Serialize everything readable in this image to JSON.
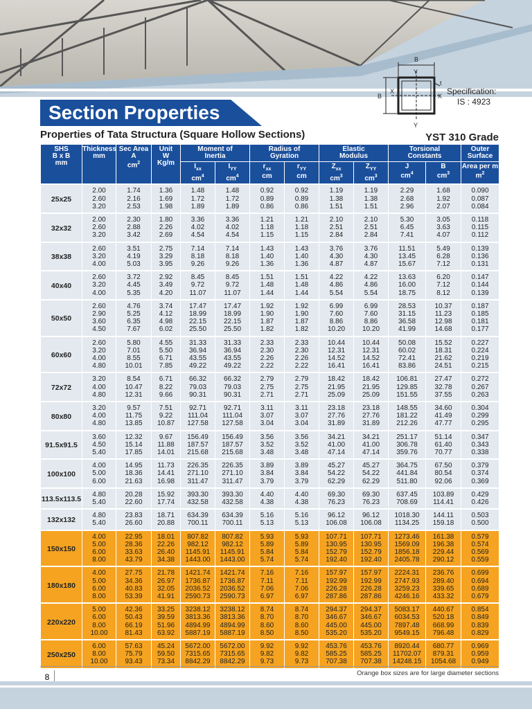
{
  "header": {
    "title": "Section Properties",
    "subtitle": "Properties of Tata Structura (Square Hollow Sections)",
    "grade": "YST 310 Grade"
  },
  "diagram": {
    "labels": {
      "top_b": "B",
      "top_y": "Y",
      "t": "t",
      "left_b": "B",
      "left_x": "X",
      "right_x": "X",
      "bottom_y": "Y"
    },
    "spec": [
      "Specification:",
      "IS : 4923"
    ]
  },
  "table": {
    "columns": [
      {
        "lines": [
          "SHS",
          "B x B",
          "mm"
        ]
      },
      {
        "lines": [
          "Thickness",
          "mm"
        ]
      },
      {
        "lines": [
          "Sec Area",
          "A"
        ],
        "unit": "cm",
        "sup": "2"
      },
      {
        "lines": [
          "Unit",
          "W",
          "Kg/m"
        ]
      }
    ],
    "column_groups": [
      {
        "lines": [
          "Moment of",
          "Inertia"
        ],
        "subs": [
          {
            "sym": "I",
            "sub": "xx",
            "unit": "cm",
            "sup": "4"
          },
          {
            "sym": "I",
            "sub": "YY",
            "unit": "cm",
            "sup": "4"
          }
        ]
      },
      {
        "lines": [
          "Radius of",
          "Gyration"
        ],
        "subs": [
          {
            "sym": "r",
            "sub": "xx",
            "unit": "cm"
          },
          {
            "sym": "r",
            "sub": "YY",
            "unit": "cm"
          }
        ]
      },
      {
        "lines": [
          "Elastic",
          "Modulus"
        ],
        "subs": [
          {
            "sym": "Z",
            "sub": "xx",
            "unit": "cm",
            "sup": "3"
          },
          {
            "sym": "Z",
            "sub": "YY",
            "unit": "cm",
            "sup": "3"
          }
        ]
      },
      {
        "lines": [
          "Torsional",
          "Constants"
        ],
        "subs": [
          {
            "sym": "J",
            "unit": "cm",
            "sup": "4"
          },
          {
            "sym": "B",
            "unit": "cm",
            "sup": "3"
          }
        ]
      },
      {
        "lines": [
          "Outer",
          "Surface"
        ],
        "subs": [
          {
            "sym": "Area per m",
            "unit": "m",
            "sup": "2"
          }
        ]
      }
    ],
    "groups": [
      {
        "size": "25x25",
        "rows": [
          [
            "2.00",
            "1.74",
            "1.36",
            "1.48",
            "1.48",
            "0.92",
            "0.92",
            "1.19",
            "1.19",
            "2.29",
            "1.68",
            "0.090"
          ],
          [
            "2.60",
            "2.16",
            "1.69",
            "1.72",
            "1.72",
            "0.89",
            "0.89",
            "1.38",
            "1.38",
            "2.68",
            "1.92",
            "0.087"
          ],
          [
            "3.20",
            "2.53",
            "1.98",
            "1.89",
            "1.89",
            "0.86",
            "0.86",
            "1.51",
            "1.51",
            "2.96",
            "2.07",
            "0.084"
          ]
        ]
      },
      {
        "size": "32x32",
        "rows": [
          [
            "2.00",
            "2.30",
            "1.80",
            "3.36",
            "3.36",
            "1.21",
            "1.21",
            "2.10",
            "2.10",
            "5.30",
            "3.05",
            "0.118"
          ],
          [
            "2.60",
            "2.88",
            "2.26",
            "4.02",
            "4.02",
            "1.18",
            "1.18",
            "2.51",
            "2.51",
            "6.45",
            "3.63",
            "0.115"
          ],
          [
            "3.20",
            "3.42",
            "2.69",
            "4.54",
            "4.54",
            "1.15",
            "1.15",
            "2.84",
            "2.84",
            "7.41",
            "4.07",
            "0.112"
          ]
        ]
      },
      {
        "size": "38x38",
        "rows": [
          [
            "2.60",
            "3.51",
            "2.75",
            "7.14",
            "7.14",
            "1.43",
            "1.43",
            "3.76",
            "3.76",
            "11.51",
            "5.49",
            "0.139"
          ],
          [
            "3.20",
            "4.19",
            "3.29",
            "8.18",
            "8.18",
            "1.40",
            "1.40",
            "4.30",
            "4.30",
            "13.45",
            "6.28",
            "0.136"
          ],
          [
            "4.00",
            "5.03",
            "3.95",
            "9.26",
            "9.26",
            "1.36",
            "1.36",
            "4.87",
            "4.87",
            "15.67",
            "7.12",
            "0.131"
          ]
        ]
      },
      {
        "size": "40x40",
        "rows": [
          [
            "2.60",
            "3.72",
            "2.92",
            "8.45",
            "8.45",
            "1.51",
            "1.51",
            "4.22",
            "4.22",
            "13.63",
            "6.20",
            "0.147"
          ],
          [
            "3.20",
            "4.45",
            "3.49",
            "9.72",
            "9.72",
            "1.48",
            "1.48",
            "4.86",
            "4.86",
            "16.00",
            "7.12",
            "0.144"
          ],
          [
            "4.00",
            "5.35",
            "4.20",
            "11.07",
            "11.07",
            "1.44",
            "1.44",
            "5.54",
            "5.54",
            "18.75",
            "8.12",
            "0.139"
          ]
        ]
      },
      {
        "size": "50x50",
        "rows": [
          [
            "2.60",
            "4.76",
            "3.74",
            "17.47",
            "17.47",
            "1.92",
            "1.92",
            "6.99",
            "6.99",
            "28.53",
            "10.37",
            "0.187"
          ],
          [
            "2.90",
            "5.25",
            "4.12",
            "18.99",
            "18.99",
            "1.90",
            "1.90",
            "7.60",
            "7.60",
            "31.15",
            "11.23",
            "0.185"
          ],
          [
            "3.60",
            "6.35",
            "4.98",
            "22.15",
            "22.15",
            "1.87",
            "1.87",
            "8.86",
            "8.86",
            "36.58",
            "12.98",
            "0.181"
          ],
          [
            "4.50",
            "7.67",
            "6.02",
            "25.50",
            "25.50",
            "1.82",
            "1.82",
            "10.20",
            "10.20",
            "41.99",
            "14.68",
            "0.177"
          ]
        ]
      },
      {
        "size": "60x60",
        "rows": [
          [
            "2.60",
            "5.80",
            "4.55",
            "31.33",
            "31.33",
            "2.33",
            "2.33",
            "10.44",
            "10.44",
            "50.08",
            "15.52",
            "0.227"
          ],
          [
            "3.20",
            "7.01",
            "5.50",
            "36.94",
            "36.94",
            "2.30",
            "2.30",
            "12.31",
            "12.31",
            "60.02",
            "18.31",
            "0.224"
          ],
          [
            "4.00",
            "8.55",
            "6.71",
            "43.55",
            "43.55",
            "2.26",
            "2.26",
            "14.52",
            "14.52",
            "72.41",
            "21.62",
            "0.219"
          ],
          [
            "4.80",
            "10.01",
            "7.85",
            "49.22",
            "49.22",
            "2.22",
            "2.22",
            "16.41",
            "16.41",
            "83.86",
            "24.51",
            "0.215"
          ]
        ]
      },
      {
        "size": "72x72",
        "rows": [
          [
            "3.20",
            "8.54",
            "6.71",
            "66.32",
            "66.32",
            "2.79",
            "2.79",
            "18.42",
            "18.42",
            "106.81",
            "27.47",
            "0.272"
          ],
          [
            "4.00",
            "10.47",
            "8.22",
            "79.03",
            "79.03",
            "2.75",
            "2.75",
            "21.95",
            "21.95",
            "129.85",
            "32.78",
            "0.267"
          ],
          [
            "4.80",
            "12.31",
            "9.66",
            "90.31",
            "90.31",
            "2.71",
            "2.71",
            "25.09",
            "25.09",
            "151.55",
            "37.55",
            "0.263"
          ]
        ]
      },
      {
        "size": "80x80",
        "rows": [
          [
            "3.20",
            "9.57",
            "7.51",
            "92.71",
            "92.71",
            "3.11",
            "3.11",
            "23.18",
            "23.18",
            "148.55",
            "34.60",
            "0.304"
          ],
          [
            "4.00",
            "11.75",
            "9.22",
            "111.04",
            "111.04",
            "3.07",
            "3.07",
            "27.76",
            "27.76",
            "181.22",
            "41.49",
            "0.299"
          ],
          [
            "4.80",
            "13.85",
            "10.87",
            "127.58",
            "127.58",
            "3.04",
            "3.04",
            "31.89",
            "31.89",
            "212.26",
            "47.77",
            "0.295"
          ]
        ]
      },
      {
        "size": "91.5x91.5",
        "rows": [
          [
            "3.60",
            "12.32",
            "9.67",
            "156.49",
            "156.49",
            "3.56",
            "3.56",
            "34.21",
            "34.21",
            "251.17",
            "51.14",
            "0.347"
          ],
          [
            "4.50",
            "15.14",
            "11.88",
            "187.57",
            "187.57",
            "3.52",
            "3.52",
            "41.00",
            "41.00",
            "306.78",
            "61.40",
            "0.343"
          ],
          [
            "5.40",
            "17.85",
            "14.01",
            "215.68",
            "215.68",
            "3.48",
            "3.48",
            "47.14",
            "47.14",
            "359.76",
            "70.77",
            "0.338"
          ]
        ]
      },
      {
        "size": "100x100",
        "rows": [
          [
            "4.00",
            "14.95",
            "11.73",
            "226.35",
            "226.35",
            "3.89",
            "3.89",
            "45.27",
            "45.27",
            "364.75",
            "67.50",
            "0.379"
          ],
          [
            "5.00",
            "18.36",
            "14.41",
            "271.10",
            "271.10",
            "3.84",
            "3.84",
            "54.22",
            "54.22",
            "441.84",
            "80.54",
            "0.374"
          ],
          [
            "6.00",
            "21.63",
            "16.98",
            "311.47",
            "311.47",
            "3.79",
            "3.79",
            "62.29",
            "62.29",
            "511.80",
            "92.06",
            "0.369"
          ]
        ]
      },
      {
        "size": "113.5x113.5",
        "rows": [
          [
            "4.80",
            "20.28",
            "15.92",
            "393.30",
            "393.30",
            "4.40",
            "4.40",
            "69.30",
            "69.30",
            "637.45",
            "103.89",
            "0.429"
          ],
          [
            "5.40",
            "22.60",
            "17.74",
            "432.58",
            "432.58",
            "4.38",
            "4.38",
            "76.23",
            "76.23",
            "708.69",
            "114.41",
            "0.426"
          ]
        ]
      },
      {
        "size": "132x132",
        "rows": [
          [
            "4.80",
            "23.83",
            "18.71",
            "634.39",
            "634.39",
            "5.16",
            "5.16",
            "96.12",
            "96.12",
            "1018.30",
            "144.11",
            "0.503"
          ],
          [
            "5.40",
            "26.60",
            "20.88",
            "700.11",
            "700.11",
            "5.13",
            "5.13",
            "106.08",
            "106.08",
            "1134.25",
            "159.18",
            "0.500"
          ]
        ]
      },
      {
        "size": "150x150",
        "highlight": true,
        "rows": [
          [
            "4.00",
            "22.95",
            "18.01",
            "807.82",
            "807.82",
            "5.93",
            "5.93",
            "107.71",
            "107.71",
            "1273.46",
            "161.38",
            "0.579"
          ],
          [
            "5.00",
            "28.36",
            "22.26",
            "982.12",
            "982.12",
            "5.89",
            "5.89",
            "130.95",
            "130.95",
            "1569.09",
            "196.38",
            "0.574"
          ],
          [
            "6.00",
            "33.63",
            "26.40",
            "1145.91",
            "1145.91",
            "5.84",
            "5.84",
            "152.79",
            "152.79",
            "1856.18",
            "229.44",
            "0.569"
          ],
          [
            "8.00",
            "43.79",
            "34.38",
            "1443.00",
            "1443.00",
            "5.74",
            "5.74",
            "192.40",
            "192.40",
            "2405.78",
            "290.12",
            "0.559"
          ]
        ]
      },
      {
        "size": "180x180",
        "highlight": true,
        "rows": [
          [
            "4.00",
            "27.75",
            "21.78",
            "1421.74",
            "1421.74",
            "7.16",
            "7.16",
            "157.97",
            "157.97",
            "2224.31",
            "236.76",
            "0.699"
          ],
          [
            "5.00",
            "34.36",
            "26.97",
            "1736.87",
            "1736.87",
            "7.11",
            "7.11",
            "192.99",
            "192.99",
            "2747.93",
            "289.40",
            "0.694"
          ],
          [
            "6.00",
            "40.83",
            "32.05",
            "2036.52",
            "2036.52",
            "7.06",
            "7.06",
            "226.28",
            "226.28",
            "3259.23",
            "339.65",
            "0.689"
          ],
          [
            "8.00",
            "53.39",
            "41.91",
            "2590.73",
            "2590.73",
            "6.97",
            "6.97",
            "287.86",
            "287.86",
            "4246.16",
            "433.32",
            "0.679"
          ]
        ]
      },
      {
        "size": "220x220",
        "highlight": true,
        "rows": [
          [
            "5.00",
            "42.36",
            "33.25",
            "3238.12",
            "3238.12",
            "8.74",
            "8.74",
            "294.37",
            "294.37",
            "5083.17",
            "440.67",
            "0.854"
          ],
          [
            "6.00",
            "50.43",
            "39.59",
            "3813.36",
            "3813.36",
            "8.70",
            "8.70",
            "346.67",
            "346.67",
            "6034.53",
            "520.18",
            "0.849"
          ],
          [
            "8.00",
            "66.19",
            "51.96",
            "4894.99",
            "4894.99",
            "8.60",
            "8.60",
            "445.00",
            "445.00",
            "7897.48",
            "668.99",
            "0.839"
          ],
          [
            "10.00",
            "81.43",
            "63.92",
            "5887.19",
            "5887.19",
            "8.50",
            "8.50",
            "535.20",
            "535.20",
            "9549.15",
            "796.48",
            "0.829"
          ]
        ]
      },
      {
        "size": "250x250",
        "highlight": true,
        "rows": [
          [
            "6.00",
            "57.63",
            "45.24",
            "5672.00",
            "5672.00",
            "9.92",
            "9.92",
            "453.76",
            "453.76",
            "8920.44",
            "680.77",
            "0.969"
          ],
          [
            "8.00",
            "75.79",
            "59.50",
            "7315.65",
            "7315.65",
            "9.82",
            "9.82",
            "585.25",
            "585.25",
            "11702.07",
            "879.31",
            "0.959"
          ],
          [
            "10.00",
            "93.43",
            "73.34",
            "8842.29",
            "8842.29",
            "9.73",
            "9.73",
            "707.38",
            "707.38",
            "14248.15",
            "1054.68",
            "0.949"
          ]
        ]
      }
    ]
  },
  "footer": {
    "page": "8",
    "note": "Orange box sizes are for large diameter sections"
  }
}
